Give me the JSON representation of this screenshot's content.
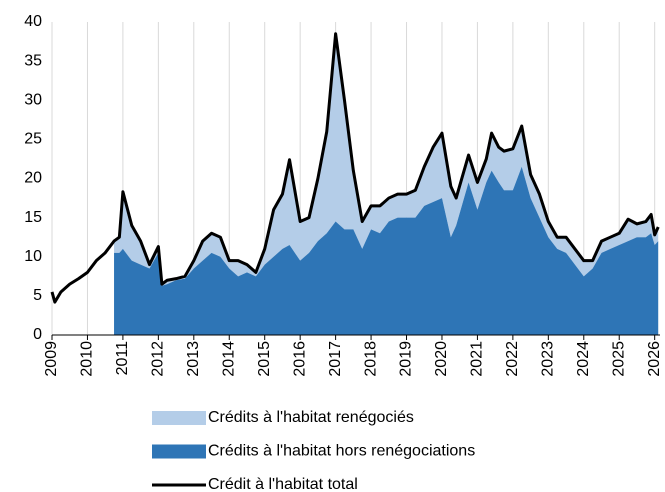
{
  "chart_data": {
    "type": "area",
    "x": [
      2009.0,
      2009.08,
      2009.25,
      2009.5,
      2009.75,
      2010.0,
      2010.25,
      2010.5,
      2010.75,
      2010.9,
      2011.0,
      2011.25,
      2011.5,
      2011.75,
      2012.0,
      2012.1,
      2012.25,
      2012.5,
      2012.75,
      2013.0,
      2013.25,
      2013.5,
      2013.75,
      2014.0,
      2014.25,
      2014.5,
      2014.75,
      2015.0,
      2015.25,
      2015.5,
      2015.7,
      2016.0,
      2016.25,
      2016.5,
      2016.75,
      2017.0,
      2017.25,
      2017.5,
      2017.75,
      2018.0,
      2018.25,
      2018.5,
      2018.75,
      2019.0,
      2019.25,
      2019.5,
      2019.75,
      2020.0,
      2020.25,
      2020.4,
      2020.75,
      2021.0,
      2021.25,
      2021.4,
      2021.6,
      2021.75,
      2022.0,
      2022.25,
      2022.5,
      2022.75,
      2023.0,
      2023.25,
      2023.5,
      2023.75,
      2024.0,
      2024.25,
      2024.5,
      2024.75,
      2025.0,
      2025.25,
      2025.5,
      2025.75,
      2025.9,
      2026.0,
      2026.1
    ],
    "series": [
      {
        "name": "Crédits à l'habitat renégociés",
        "color": "#b4cde8",
        "values": [
          null,
          null,
          null,
          null,
          null,
          null,
          null,
          null,
          1.5,
          2,
          7.3,
          4.5,
          3,
          0.5,
          0.8,
          0.2,
          0.5,
          0.2,
          0.3,
          1,
          2.5,
          2.5,
          2.5,
          1,
          2,
          1,
          0.5,
          2,
          6,
          7,
          10.9,
          5,
          4.5,
          8,
          13,
          24,
          16.5,
          7.5,
          3.5,
          3,
          3.5,
          3,
          3,
          3,
          3.5,
          5,
          7,
          8.3,
          6.5,
          3.5,
          3.5,
          3.5,
          3,
          4.8,
          4.5,
          5,
          5.3,
          5.2,
          3,
          3,
          2,
          1.5,
          2,
          2,
          2,
          1,
          1.5,
          1.5,
          1.5,
          2.8,
          1.7,
          2,
          2.4,
          1.3,
          1.8
        ]
      },
      {
        "name": "Crédits à l'habitat hors renégociations",
        "color": "#2e75b6",
        "values": [
          null,
          null,
          null,
          null,
          null,
          null,
          null,
          null,
          10.5,
          10.5,
          11,
          9.5,
          9,
          8.5,
          10.5,
          6.3,
          6.5,
          7,
          7.2,
          8.5,
          9.5,
          10.5,
          10,
          8.5,
          7.5,
          8,
          7.5,
          9,
          10,
          11,
          11.5,
          9.5,
          10.5,
          12,
          13,
          14.5,
          13.5,
          13.5,
          11,
          13.5,
          13,
          14.5,
          15,
          15,
          15,
          16.5,
          17,
          17.5,
          12.5,
          14,
          19.5,
          16,
          19.5,
          21,
          19.5,
          18.5,
          18.5,
          21.5,
          17.5,
          15,
          12.5,
          11,
          10.5,
          9,
          7.5,
          8.5,
          10.5,
          11,
          11.5,
          12,
          12.5,
          12.5,
          13,
          11.5,
          12
        ]
      },
      {
        "name": "Crédit à l'habitat total",
        "color": "#000000",
        "values": [
          5.5,
          4.2,
          5.5,
          6.5,
          7.2,
          8,
          9.5,
          10.5,
          12,
          12.5,
          18.3,
          14,
          12,
          9,
          11.3,
          6.5,
          7,
          7.2,
          7.5,
          9.5,
          12,
          13,
          12.5,
          9.5,
          9.5,
          9,
          8,
          11,
          16,
          18,
          22.4,
          14.5,
          15,
          20,
          26,
          38.5,
          30,
          21,
          14.5,
          16.5,
          16.5,
          17.5,
          18,
          18,
          18.5,
          21.5,
          24,
          25.8,
          19,
          17.5,
          23,
          19.5,
          22.5,
          25.8,
          24,
          23.5,
          23.8,
          26.7,
          20.5,
          18,
          14.5,
          12.5,
          12.5,
          11,
          9.5,
          9.5,
          12,
          12.5,
          13,
          14.8,
          14.2,
          14.5,
          15.4,
          12.8,
          13.8
        ]
      }
    ],
    "xlim": [
      2009,
      2026.15
    ],
    "xticks": [
      2009,
      2010,
      2011,
      2012,
      2013,
      2014,
      2015,
      2016,
      2017,
      2018,
      2019,
      2020,
      2021,
      2022,
      2023,
      2024,
      2025,
      2026
    ],
    "ylim": [
      0,
      40
    ],
    "yticks": [
      0,
      5,
      10,
      15,
      20,
      25,
      30,
      35,
      40
    ],
    "grid": true,
    "legend": "bottom"
  }
}
